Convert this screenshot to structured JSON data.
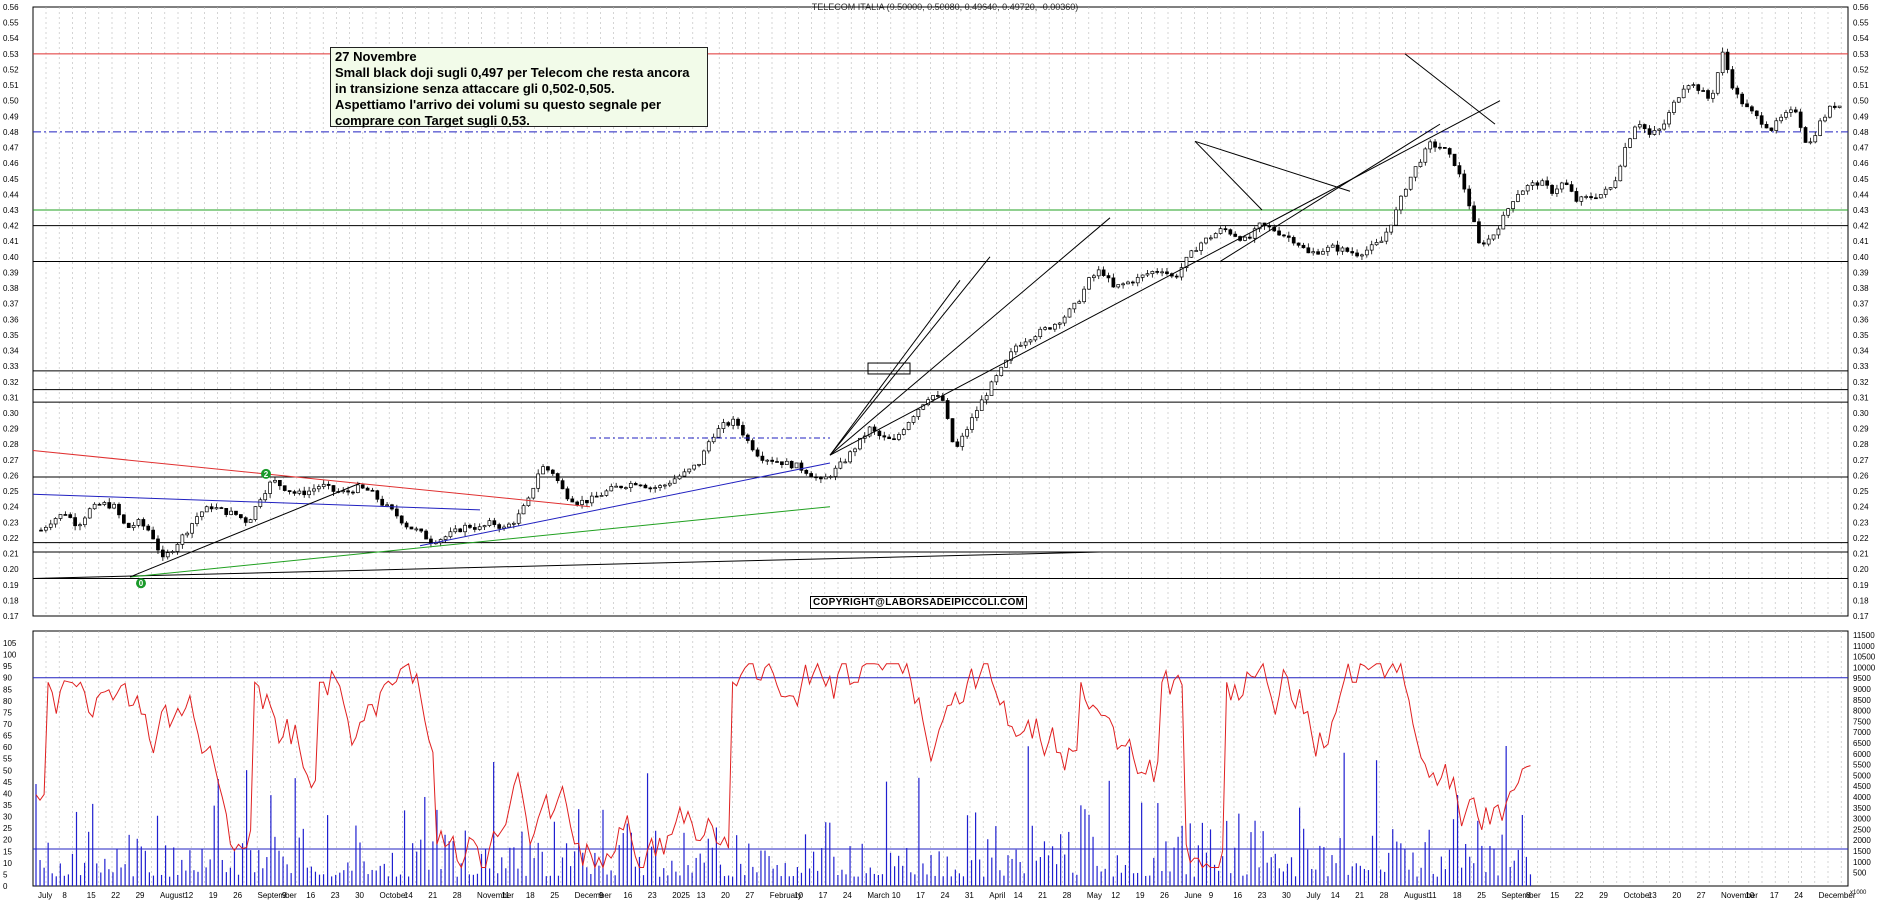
{
  "title": "TELECOM ITALIA (0.50000, 0.50080, 0.49640, 0.49720, -0.00360)",
  "annotation": {
    "date": "27 Novembre",
    "lines": [
      "Small black doji sugli 0,497 per Telecom che resta ancora",
      "in transizione senza attaccare gli 0,502-0,505.",
      "Aspettiamo l'arrivo dei volumi su questo segnale per",
      "comprare con Target sugli 0,53."
    ]
  },
  "copyright": "COPYRIGHT@LABORSADEIPICCOLI.COM",
  "markers": [
    {
      "label": "2"
    },
    {
      "label": "0"
    }
  ],
  "colors": {
    "candle": "#000000",
    "resistance": "#e03030",
    "dash_level": "#2020c0",
    "support_green": "#20a020",
    "oscillator": "#e02020",
    "volume": "#2020d0",
    "marker": "#1a9a2a"
  },
  "chart_data": [
    {
      "type": "candlestick",
      "title": "TELECOM ITALIA (0.50000, 0.50080, 0.49640, 0.49720, -0.00360)",
      "ylim": [
        0.17,
        0.56
      ],
      "yticks": [
        "0.56",
        "0.55",
        "0.54",
        "0.53",
        "0.52",
        "0.51",
        "0.50",
        "0.49",
        "0.48",
        "0.47",
        "0.46",
        "0.45",
        "0.44",
        "0.43",
        "0.42",
        "0.41",
        "0.40",
        "0.39",
        "0.38",
        "0.37",
        "0.36",
        "0.35",
        "0.34",
        "0.33",
        "0.32",
        "0.31",
        "0.30",
        "0.29",
        "0.28",
        "0.27",
        "0.26",
        "0.25",
        "0.24",
        "0.23",
        "0.22",
        "0.21",
        "0.20",
        "0.19",
        "0.18",
        "0.17"
      ],
      "horizontal_levels": [
        {
          "value": 0.53,
          "color": "red"
        },
        {
          "value": 0.48,
          "color": "blue-dashdot"
        },
        {
          "value": 0.43,
          "color": "green"
        },
        {
          "value": 0.42,
          "color": "black"
        },
        {
          "value": 0.397,
          "color": "black"
        },
        {
          "value": 0.327,
          "color": "black"
        },
        {
          "value": 0.315,
          "color": "black"
        },
        {
          "value": 0.307,
          "color": "black"
        },
        {
          "value": 0.259,
          "color": "black"
        },
        {
          "value": 0.217,
          "color": "black"
        },
        {
          "value": 0.211,
          "color": "black"
        },
        {
          "value": 0.194,
          "color": "black"
        }
      ],
      "close_path": [
        [
          0,
          0.225
        ],
        [
          10,
          0.232
        ],
        [
          20,
          0.236
        ],
        [
          30,
          0.228
        ],
        [
          40,
          0.238
        ],
        [
          50,
          0.242
        ],
        [
          60,
          0.24
        ],
        [
          70,
          0.226
        ],
        [
          80,
          0.23
        ],
        [
          90,
          0.224
        ],
        [
          100,
          0.206
        ],
        [
          110,
          0.215
        ],
        [
          120,
          0.225
        ],
        [
          130,
          0.236
        ],
        [
          140,
          0.24
        ],
        [
          150,
          0.237
        ],
        [
          160,
          0.235
        ],
        [
          170,
          0.23
        ],
        [
          180,
          0.246
        ],
        [
          190,
          0.257
        ],
        [
          200,
          0.252
        ],
        [
          210,
          0.248
        ],
        [
          220,
          0.25
        ],
        [
          230,
          0.254
        ],
        [
          240,
          0.25
        ],
        [
          250,
          0.249
        ],
        [
          260,
          0.252
        ],
        [
          270,
          0.25
        ],
        [
          280,
          0.242
        ],
        [
          290,
          0.236
        ],
        [
          300,
          0.228
        ],
        [
          310,
          0.224
        ],
        [
          320,
          0.218
        ],
        [
          330,
          0.22
        ],
        [
          340,
          0.224
        ],
        [
          350,
          0.228
        ],
        [
          360,
          0.226
        ],
        [
          370,
          0.23
        ],
        [
          380,
          0.226
        ],
        [
          390,
          0.232
        ],
        [
          400,
          0.244
        ],
        [
          410,
          0.266
        ],
        [
          420,
          0.262
        ],
        [
          430,
          0.248
        ],
        [
          440,
          0.243
        ],
        [
          450,
          0.244
        ],
        [
          460,
          0.248
        ],
        [
          470,
          0.252
        ],
        [
          480,
          0.254
        ],
        [
          490,
          0.256
        ],
        [
          500,
          0.252
        ],
        [
          510,
          0.253
        ],
        [
          520,
          0.258
        ],
        [
          530,
          0.262
        ],
        [
          540,
          0.268
        ],
        [
          550,
          0.285
        ],
        [
          560,
          0.292
        ],
        [
          570,
          0.295
        ],
        [
          580,
          0.282
        ],
        [
          590,
          0.272
        ],
        [
          600,
          0.27
        ],
        [
          610,
          0.268
        ],
        [
          620,
          0.266
        ],
        [
          630,
          0.262
        ],
        [
          640,
          0.256
        ],
        [
          650,
          0.262
        ],
        [
          660,
          0.27
        ],
        [
          670,
          0.28
        ],
        [
          680,
          0.29
        ],
        [
          690,
          0.284
        ],
        [
          700,
          0.282
        ],
        [
          710,
          0.293
        ],
        [
          720,
          0.303
        ],
        [
          730,
          0.312
        ],
        [
          740,
          0.308
        ],
        [
          750,
          0.275
        ],
        [
          760,
          0.29
        ],
        [
          770,
          0.305
        ],
        [
          780,
          0.318
        ],
        [
          790,
          0.33
        ],
        [
          800,
          0.343
        ],
        [
          810,
          0.348
        ],
        [
          820,
          0.352
        ],
        [
          830,
          0.356
        ],
        [
          840,
          0.362
        ],
        [
          850,
          0.37
        ],
        [
          860,
          0.385
        ],
        [
          870,
          0.392
        ],
        [
          880,
          0.38
        ],
        [
          890,
          0.383
        ],
        [
          900,
          0.386
        ],
        [
          910,
          0.39
        ],
        [
          920,
          0.392
        ],
        [
          930,
          0.386
        ],
        [
          940,
          0.398
        ],
        [
          950,
          0.408
        ],
        [
          960,
          0.413
        ],
        [
          970,
          0.418
        ],
        [
          980,
          0.414
        ],
        [
          990,
          0.41
        ],
        [
          1000,
          0.42
        ],
        [
          1010,
          0.418
        ],
        [
          1020,
          0.414
        ],
        [
          1030,
          0.41
        ],
        [
          1040,
          0.402
        ],
        [
          1050,
          0.404
        ],
        [
          1060,
          0.406
        ],
        [
          1070,
          0.404
        ],
        [
          1080,
          0.402
        ],
        [
          1090,
          0.405
        ],
        [
          1100,
          0.41
        ],
        [
          1110,
          0.425
        ],
        [
          1120,
          0.445
        ],
        [
          1130,
          0.46
        ],
        [
          1140,
          0.472
        ],
        [
          1150,
          0.47
        ],
        [
          1160,
          0.46
        ],
        [
          1170,
          0.44
        ],
        [
          1180,
          0.408
        ],
        [
          1190,
          0.412
        ],
        [
          1200,
          0.425
        ],
        [
          1210,
          0.44
        ],
        [
          1220,
          0.445
        ],
        [
          1230,
          0.448
        ],
        [
          1240,
          0.442
        ],
        [
          1250,
          0.448
        ],
        [
          1260,
          0.436
        ],
        [
          1270,
          0.438
        ],
        [
          1280,
          0.44
        ],
        [
          1290,
          0.445
        ],
        [
          1300,
          0.47
        ],
        [
          1310,
          0.488
        ],
        [
          1320,
          0.478
        ],
        [
          1330,
          0.482
        ],
        [
          1340,
          0.498
        ],
        [
          1350,
          0.512
        ],
        [
          1360,
          0.508
        ],
        [
          1370,
          0.5
        ],
        [
          1380,
          0.53
        ],
        [
          1390,
          0.505
        ],
        [
          1400,
          0.495
        ],
        [
          1410,
          0.488
        ],
        [
          1420,
          0.482
        ],
        [
          1430,
          0.49
        ],
        [
          1440,
          0.494
        ],
        [
          1450,
          0.47
        ],
        [
          1460,
          0.486
        ],
        [
          1470,
          0.497
        ],
        [
          1478,
          0.497
        ]
      ]
    },
    {
      "type": "line+bar",
      "ylim": [
        0,
        100
      ],
      "yticks": [
        "105",
        "100",
        "95",
        "90",
        "85",
        "80",
        "75",
        "70",
        "65",
        "60",
        "55",
        "50",
        "45",
        "40",
        "35",
        "30",
        "25",
        "20",
        "15",
        "10",
        "5",
        "0"
      ],
      "y2ticks": [
        "11500",
        "11000",
        "10500",
        "10000",
        "9500",
        "9000",
        "8500",
        "8000",
        "7500",
        "7000",
        "6500",
        "6000",
        "5500",
        "5000",
        "4500",
        "4000",
        "3500",
        "3000",
        "2500",
        "2000",
        "1500",
        "1000",
        "500"
      ],
      "levels": [
        90,
        16
      ],
      "y2label": "x1000",
      "x_labels": [
        "July",
        "8",
        "15",
        "22",
        "29",
        "August",
        "12",
        "19",
        "26",
        "September",
        "9",
        "16",
        "23",
        "30",
        "October",
        "14",
        "21",
        "28",
        "November",
        "11",
        "18",
        "25",
        "December",
        "9",
        "16",
        "23",
        "2025",
        "13",
        "20",
        "27",
        "February",
        "10",
        "17",
        "24",
        "March",
        "10",
        "17",
        "24",
        "31",
        "April",
        "14",
        "21",
        "28",
        "May",
        "12",
        "19",
        "26",
        "June",
        "9",
        "16",
        "23",
        "30",
        "July",
        "14",
        "21",
        "28",
        "August",
        "11",
        "18",
        "25",
        "September",
        "8",
        "15",
        "22",
        "29",
        "October",
        "13",
        "20",
        "27",
        "November",
        "10",
        "17",
        "24",
        "December"
      ]
    }
  ]
}
